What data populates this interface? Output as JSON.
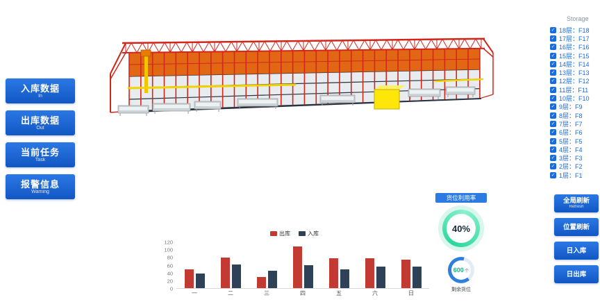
{
  "left_buttons": [
    {
      "label": "入库数据",
      "sub": "In"
    },
    {
      "label": "出库数据",
      "sub": "Out"
    },
    {
      "label": "当前任务",
      "sub": "Task"
    },
    {
      "label": "报警信息",
      "sub": "Warning"
    }
  ],
  "storage": {
    "title": "Storage",
    "items": [
      {
        "label": "18层：F18"
      },
      {
        "label": "17层：F17"
      },
      {
        "label": "16层：F16"
      },
      {
        "label": "15层：F15"
      },
      {
        "label": "14层：F14"
      },
      {
        "label": "13层：F13"
      },
      {
        "label": "12层：F12"
      },
      {
        "label": "11层：F11"
      },
      {
        "label": "10层：F10"
      },
      {
        "label": "9层：F9"
      },
      {
        "label": "8层：F8"
      },
      {
        "label": "7层：F7"
      },
      {
        "label": "6层：F6"
      },
      {
        "label": "5层：F5"
      },
      {
        "label": "4层：F4"
      },
      {
        "label": "3层：F3"
      },
      {
        "label": "2层：F2"
      },
      {
        "label": "1层：F1"
      }
    ]
  },
  "right_buttons": [
    {
      "label": "全局刷新",
      "sub": "Refresh"
    },
    {
      "label": "位置刷新",
      "sub": ""
    },
    {
      "label": "日入库",
      "sub": ""
    },
    {
      "label": "日出库",
      "sub": ""
    }
  ],
  "utilization": {
    "title": "货位利用率",
    "percent": "40%",
    "remain_value": "600",
    "remain_unit": "个",
    "remain_label": "剩余货位"
  },
  "colors": {
    "primary_blue": "#1a6be0",
    "out_red": "#c23a32",
    "in_navy": "#2f4156",
    "gauge_green": "#29d69c",
    "gauge_blue": "#2f7fe0",
    "rack_red": "#d3261a",
    "rack_orange": "#e05a00",
    "crane_yellow": "#ffe609"
  },
  "chart_data": {
    "type": "bar",
    "title": "",
    "categories": [
      "一",
      "二",
      "三",
      "四",
      "五",
      "六",
      "日"
    ],
    "series": [
      {
        "name": "出库",
        "color": "#c23a32",
        "values": [
          50,
          80,
          30,
          110,
          78,
          78,
          74
        ]
      },
      {
        "name": "入库",
        "color": "#2f4156",
        "values": [
          38,
          62,
          46,
          60,
          50,
          56,
          56
        ]
      }
    ],
    "xlabel": "",
    "ylabel": "",
    "ylim": [
      0,
      120
    ],
    "yticks": [
      0,
      20,
      40,
      60,
      80,
      100,
      120
    ],
    "legend_position": "top",
    "grid": false
  }
}
